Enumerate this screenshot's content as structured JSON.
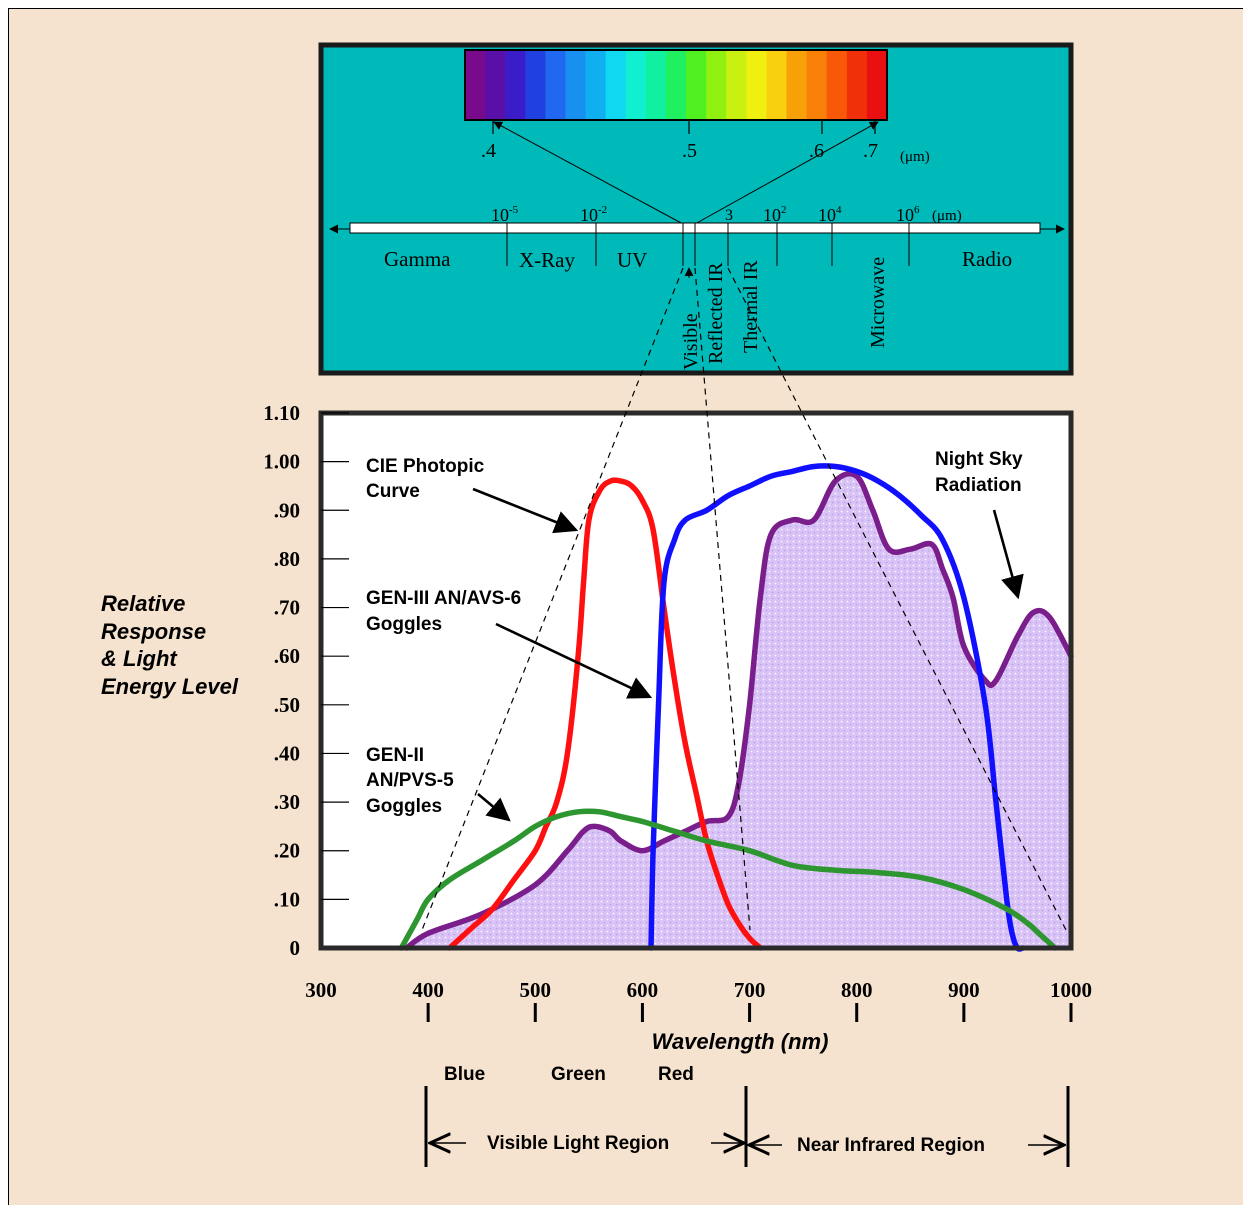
{
  "spectrum": {
    "visible_ticks": [
      ".4",
      ".5",
      ".6",
      ".7"
    ],
    "visible_unit": "(μm)",
    "scale": [
      {
        "base": "10",
        "exp": "-5"
      },
      {
        "base": "10",
        "exp": "-2"
      },
      {
        "base": "3",
        "exp": ""
      },
      {
        "base": "10",
        "exp": "2"
      },
      {
        "base": "10",
        "exp": "4"
      },
      {
        "base": "10",
        "exp": "6"
      }
    ],
    "scale_unit": "(μm)",
    "bands": [
      "Gamma",
      "X-Ray",
      "UV",
      "Radio"
    ],
    "vertical_bands": [
      "Visible",
      "Reflected IR",
      "Thermal IR",
      "Microwave"
    ],
    "colors": [
      "#7a0a8c",
      "#5a10a8",
      "#3a1cc8",
      "#2040e0",
      "#2068f0",
      "#1890f0",
      "#10b0f0",
      "#10d8f0",
      "#10f0d0",
      "#10f0a0",
      "#20f060",
      "#50f020",
      "#90f010",
      "#c8f010",
      "#f0f010",
      "#f8d010",
      "#f8a008",
      "#f88008",
      "#f85808",
      "#f03008",
      "#e81010"
    ],
    "teal": "#00b9b9"
  },
  "chart_data": {
    "type": "line",
    "xlabel": "Wavelength (nm)",
    "ylabel_lines": [
      "Relative",
      "Response",
      "& Light",
      "Energy Level"
    ],
    "x_ticks": [
      "300",
      "400",
      "500",
      "600",
      "700",
      "800",
      "900",
      "1000"
    ],
    "y_ticks": [
      "0",
      ".10",
      ".20",
      ".30",
      ".40",
      ".50",
      ".60",
      ".70",
      ".80",
      ".90",
      "1.00",
      "1.10"
    ],
    "xlim": [
      300,
      1000
    ],
    "ylim": [
      0,
      1.1
    ],
    "series": [
      {
        "key": "night",
        "color": "#7a1e8c",
        "fill": "#d7bdf4",
        "x": [
          380,
          400,
          450,
          500,
          530,
          545,
          555,
          570,
          580,
          600,
          620,
          640,
          660,
          680,
          690,
          700,
          710,
          720,
          740,
          760,
          780,
          800,
          815,
          830,
          850,
          870,
          880,
          890,
          900,
          920,
          930,
          950,
          965,
          980,
          1000
        ],
        "y": [
          0.0,
          0.03,
          0.07,
          0.13,
          0.2,
          0.24,
          0.25,
          0.24,
          0.22,
          0.2,
          0.22,
          0.24,
          0.26,
          0.27,
          0.34,
          0.5,
          0.72,
          0.85,
          0.88,
          0.88,
          0.96,
          0.97,
          0.9,
          0.82,
          0.82,
          0.83,
          0.78,
          0.72,
          0.62,
          0.55,
          0.55,
          0.64,
          0.69,
          0.68,
          0.6
        ]
      },
      {
        "key": "cie",
        "color": "#ff1010",
        "x": [
          420,
          440,
          460,
          480,
          500,
          510,
          520,
          530,
          540,
          545,
          550,
          560,
          570,
          580,
          590,
          600,
          610,
          620,
          630,
          640,
          650,
          660,
          670,
          680,
          690,
          700,
          710
        ],
        "y": [
          0.0,
          0.04,
          0.08,
          0.14,
          0.2,
          0.25,
          0.3,
          0.4,
          0.6,
          0.75,
          0.88,
          0.94,
          0.96,
          0.96,
          0.95,
          0.92,
          0.86,
          0.7,
          0.55,
          0.42,
          0.32,
          0.22,
          0.15,
          0.09,
          0.05,
          0.02,
          0.0
        ]
      },
      {
        "key": "gen3",
        "color": "#1010ff",
        "x": [
          608,
          610,
          615,
          620,
          630,
          640,
          660,
          680,
          700,
          720,
          740,
          760,
          780,
          800,
          820,
          840,
          860,
          880,
          900,
          920,
          930,
          940,
          945,
          950,
          955
        ],
        "y": [
          0.0,
          0.2,
          0.5,
          0.75,
          0.84,
          0.88,
          0.9,
          0.93,
          0.95,
          0.97,
          0.98,
          0.99,
          0.99,
          0.98,
          0.96,
          0.93,
          0.89,
          0.84,
          0.72,
          0.5,
          0.3,
          0.1,
          0.03,
          0.0,
          0.0
        ]
      },
      {
        "key": "gen2",
        "color": "#2e9630",
        "x": [
          375,
          380,
          390,
          400,
          420,
          450,
          480,
          500,
          520,
          540,
          560,
          580,
          600,
          630,
          660,
          700,
          740,
          780,
          820,
          860,
          900,
          940,
          960,
          970,
          980,
          985
        ],
        "y": [
          0.0,
          0.02,
          0.06,
          0.1,
          0.14,
          0.18,
          0.22,
          0.25,
          0.27,
          0.28,
          0.28,
          0.27,
          0.26,
          0.24,
          0.22,
          0.2,
          0.17,
          0.16,
          0.155,
          0.145,
          0.12,
          0.08,
          0.05,
          0.03,
          0.01,
          0.0
        ]
      }
    ],
    "annotations": [
      {
        "key": "cie",
        "lines": [
          "CIE Photopic",
          "Curve"
        ]
      },
      {
        "key": "gen3",
        "lines": [
          "GEN-III AN/AVS-6",
          "Goggles"
        ]
      },
      {
        "key": "gen2",
        "lines": [
          "GEN-II",
          "AN/PVS-5",
          "Goggles"
        ]
      },
      {
        "key": "night",
        "lines": [
          "Night Sky",
          "Radiation"
        ]
      }
    ]
  },
  "regions": {
    "colors": [
      "Blue",
      "Green",
      "Red"
    ],
    "visible": "Visible Light Region",
    "nir": "Near Infrared Region"
  }
}
